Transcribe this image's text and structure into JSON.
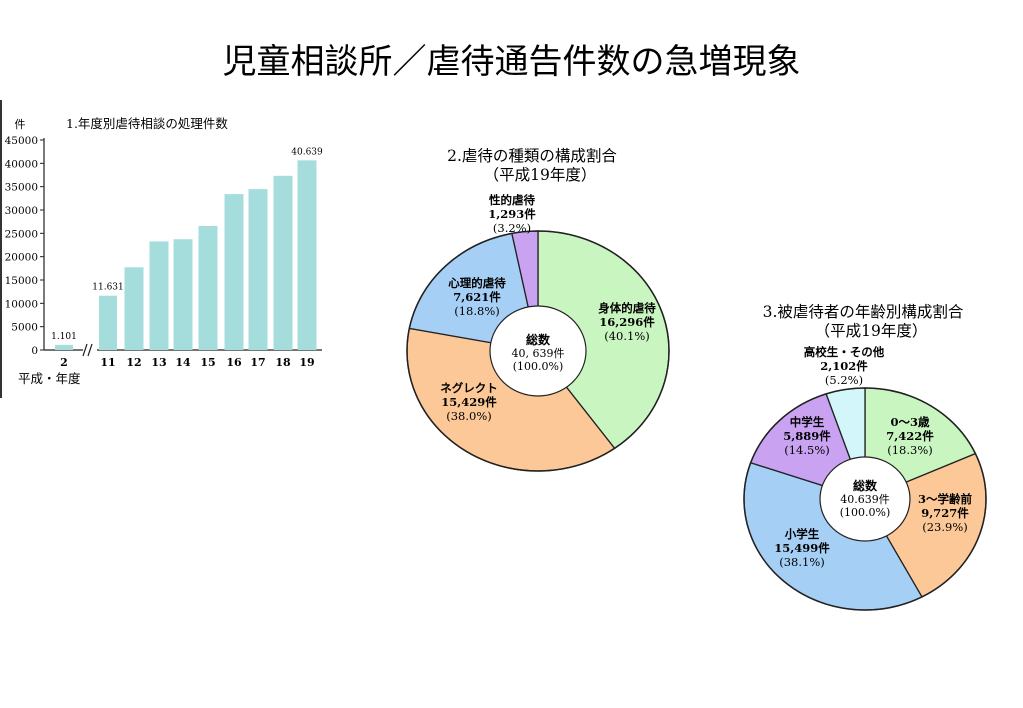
{
  "page": {
    "title": "児童相談所／虐待通告件数の急増現象"
  },
  "chart_data": [
    {
      "type": "bar",
      "title": "1.年度別虐待相談の処理件数",
      "ylabel": "件",
      "xlabel": "平成・年度",
      "ylim": [
        0,
        45000
      ],
      "yticks": [
        0,
        5000,
        10000,
        15000,
        20000,
        25000,
        30000,
        35000,
        40000,
        45000
      ],
      "categories": [
        "2",
        "11",
        "12",
        "13",
        "14",
        "15",
        "16",
        "17",
        "18",
        "19"
      ],
      "values": [
        1101,
        11631,
        17725,
        23274,
        23738,
        26569,
        33408,
        34472,
        37323,
        40639
      ],
      "data_labels": [
        {
          "category": "2",
          "text": "1.101"
        },
        {
          "category": "11",
          "text": "11.631"
        },
        {
          "category": "19",
          "text": "40.639"
        }
      ],
      "axis_break_after": "2",
      "bar_color": "#a5dcdc"
    },
    {
      "type": "pie",
      "title": "2.虐待の種類の構成割合",
      "subtitle": "（平成19年度）",
      "center_label": [
        "総数",
        "40, 639件",
        "(100.0%)"
      ],
      "slices": [
        {
          "label": "身体的虐待",
          "count": "16,296件",
          "pct_text": "(40.1%)",
          "value": 40.1,
          "color": "#c8f5c0"
        },
        {
          "label": "ネグレクト",
          "count": "15,429件",
          "pct_text": "(38.0%)",
          "value": 38.0,
          "color": "#fcc898"
        },
        {
          "label": "心理的虐待",
          "count": "7,621件",
          "pct_text": "(18.8%)",
          "value": 18.8,
          "color": "#a6cff6"
        },
        {
          "label": "性的虐待",
          "count": "1,293件",
          "pct_text": "(3.2%)",
          "value": 3.2,
          "color": "#c9a3f2"
        }
      ]
    },
    {
      "type": "pie",
      "title": "3.被虐待者の年齢別構成割合",
      "subtitle": "（平成19年度）",
      "center_label": [
        "総数",
        "40.639件",
        "(100.0%)"
      ],
      "slices": [
        {
          "label": "0～3歳",
          "count": "7,422件",
          "pct_text": "(18.3%)",
          "value": 18.3,
          "color": "#c8f5c0"
        },
        {
          "label": "3～学齢前",
          "count": "9,727件",
          "pct_text": "(23.9%)",
          "value": 23.9,
          "color": "#fcc898"
        },
        {
          "label": "小学生",
          "count": "15,499件",
          "pct_text": "(38.1%)",
          "value": 38.1,
          "color": "#a6cff6"
        },
        {
          "label": "中学生",
          "count": "5,889件",
          "pct_text": "(14.5%)",
          "value": 14.5,
          "color": "#c9a3f2"
        },
        {
          "label": "高校生・その他",
          "count": "2,102件",
          "pct_text": "(5.2%)",
          "value": 5.2,
          "color": "#d2f6fa"
        }
      ]
    }
  ]
}
